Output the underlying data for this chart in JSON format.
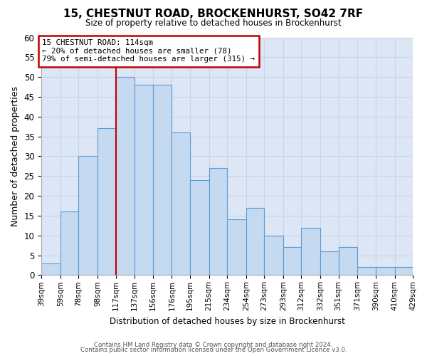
{
  "title": "15, CHESTNUT ROAD, BROCKENHURST, SO42 7RF",
  "subtitle": "Size of property relative to detached houses in Brockenhurst",
  "xlabel": "Distribution of detached houses by size in Brockenhurst",
  "ylabel": "Number of detached properties",
  "bin_labels": [
    "39sqm",
    "59sqm",
    "78sqm",
    "98sqm",
    "117sqm",
    "137sqm",
    "156sqm",
    "176sqm",
    "195sqm",
    "215sqm",
    "234sqm",
    "254sqm",
    "273sqm",
    "293sqm",
    "312sqm",
    "332sqm",
    "351sqm",
    "371sqm",
    "390sqm",
    "410sqm",
    "429sqm"
  ],
  "bar_values": [
    3,
    16,
    30,
    37,
    50,
    48,
    48,
    36,
    24,
    27,
    14,
    17,
    10,
    7,
    12,
    6,
    7,
    2,
    2,
    2
  ],
  "bar_color": "#c5d9f1",
  "bar_edge_color": "#5b9bd5",
  "property_line_label": "15 CHESTNUT ROAD: 114sqm",
  "annotation_line1": "← 20% of detached houses are smaller (78)",
  "annotation_line2": "79% of semi-detached houses are larger (315) →",
  "annotation_box_color": "#ffffff",
  "annotation_box_edge_color": "#c00000",
  "vline_color": "#c00000",
  "ylim": [
    0,
    60
  ],
  "yticks": [
    0,
    5,
    10,
    15,
    20,
    25,
    30,
    35,
    40,
    45,
    50,
    55,
    60
  ],
  "grid_color": "#c8d4e8",
  "ax_background_color": "#dce6f5",
  "fig_background_color": "#ffffff",
  "footer_line1": "Contains HM Land Registry data © Crown copyright and database right 2024.",
  "footer_line2": "Contains public sector information licensed under the Open Government Licence v3.0.",
  "bin_edges": [
    39,
    59,
    78,
    98,
    117,
    137,
    156,
    176,
    195,
    215,
    234,
    254,
    273,
    293,
    312,
    332,
    351,
    371,
    390,
    410,
    429
  ]
}
